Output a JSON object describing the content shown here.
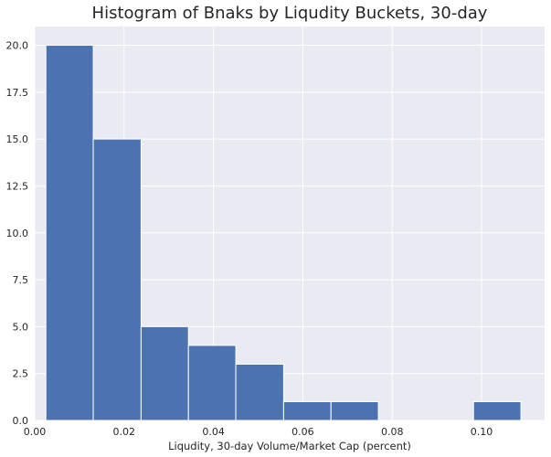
{
  "chart_data": {
    "type": "bar",
    "title": "Histogram of Bnaks by Liqudity Buckets, 30-day",
    "xlabel": "Liqudity, 30-day Volume/Market Cap (percent)",
    "ylabel": "",
    "bins": [
      {
        "start": 0.0025,
        "end": 0.0131,
        "count": 20
      },
      {
        "start": 0.0131,
        "end": 0.0238,
        "count": 15
      },
      {
        "start": 0.0238,
        "end": 0.0344,
        "count": 5
      },
      {
        "start": 0.0344,
        "end": 0.045,
        "count": 4
      },
      {
        "start": 0.045,
        "end": 0.0557,
        "count": 3
      },
      {
        "start": 0.0557,
        "end": 0.0663,
        "count": 1
      },
      {
        "start": 0.0663,
        "end": 0.0769,
        "count": 1
      },
      {
        "start": 0.0769,
        "end": 0.0876,
        "count": 0
      },
      {
        "start": 0.0876,
        "end": 0.0982,
        "count": 0
      },
      {
        "start": 0.0982,
        "end": 0.1088,
        "count": 1
      }
    ],
    "xlim": [
      0.0,
      0.1141
    ],
    "ylim": [
      0,
      21
    ],
    "xticks": [
      0.0,
      0.02,
      0.04,
      0.06,
      0.08,
      0.1
    ],
    "xtick_labels": [
      "0.00",
      "0.02",
      "0.04",
      "0.06",
      "0.08",
      "0.10"
    ],
    "yticks": [
      0,
      2.5,
      5,
      7.5,
      10,
      12.5,
      15,
      17.5,
      20
    ],
    "ytick_labels": [
      "0.0",
      "2.5",
      "5.0",
      "7.5",
      "10.0",
      "12.5",
      "15.0",
      "17.5",
      "20.0"
    ],
    "grid": true,
    "colors": {
      "bar": "#4c72b0",
      "plot_background": "#eaeaf2",
      "grid": "#ffffff",
      "bar_edge": "#ffffff"
    }
  }
}
